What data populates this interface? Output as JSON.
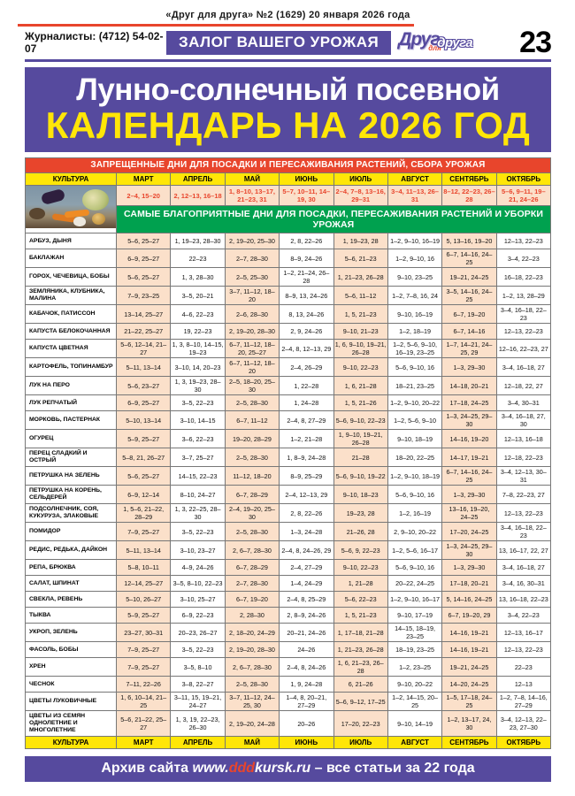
{
  "masthead": {
    "issue_line": "«Друг для друга» №2 (1629) 20 января 2026 года",
    "journalists": "Журналисты: (4712) 54-02-07",
    "slogan": "ЗАЛОГ ВАШЕГО УРОЖАЯ",
    "logo": {
      "word1": "Друг",
      "word2": "для",
      "word3": "друга"
    },
    "page_number": "23"
  },
  "title": {
    "line1": "Лунно-солнечный посевной",
    "line2": "КАЛЕНДАРЬ НА 2026 ГОД"
  },
  "table": {
    "forbidden_header": "ЗАПРЕЩЕННЫЕ ДНИ ДЛЯ ПОСАДКИ И ПЕРЕСАЖИВАНИЯ РАСТЕНИЙ, СБОРА УРОЖАЯ",
    "favorable_header": "САМЫЕ БЛАГОПРИЯТНЫЕ ДНИ ДЛЯ ПОСАДКИ, ПЕРЕСАЖИВАНИЯ РАСТЕНИЙ И УБОРКИ УРОЖАЯ",
    "culture_label": "КУЛЬТУРА",
    "months": [
      "МАРТ",
      "АПРЕЛЬ",
      "МАЙ",
      "ИЮНЬ",
      "ИЮЛЬ",
      "АВГУСТ",
      "СЕНТЯБРЬ",
      "ОКТЯБРЬ"
    ],
    "forbidden_days": [
      "2–4, 15–20",
      "2, 12–13, 16–18",
      "1, 8–10, 13–17, 21–23, 31",
      "5–7, 10–11, 14–19, 30",
      "2–4, 7–8, 13–16, 29–31",
      "3–4, 11–13, 26–31",
      "8–12, 22–23, 26–28",
      "5–6, 9–11, 19–21, 24–26"
    ],
    "rows": [
      {
        "name": "АРБУЗ, ДЫНЯ",
        "cells": [
          "5–6, 25–27",
          "1, 19–23, 28–30",
          "2, 19–20, 25–30",
          "2, 8, 22–26",
          "1, 19–23, 28",
          "1–2, 9–10, 16–19",
          "5, 13–16, 19–20",
          "12–13, 22–23"
        ]
      },
      {
        "name": "БАКЛАЖАН",
        "cells": [
          "6–9, 25–27",
          "22–23",
          "2–7, 28–30",
          "8–9, 24–26",
          "5–6, 21–23",
          "1–2, 9–10, 16",
          "6–7, 14–16, 24–25",
          "3–4, 22–23"
        ]
      },
      {
        "name": "ГОРОХ, ЧЕЧЕВИЦА, БОБЫ",
        "cells": [
          "5–6, 25–27",
          "1, 3, 28–30",
          "2–5, 25–30",
          "1–2, 21–24, 26–28",
          "1, 21–23, 26–28",
          "9–10, 23–25",
          "19–21, 24–25",
          "16–18, 22–23"
        ]
      },
      {
        "name": "ЗЕМЛЯНИКА, КЛУБНИКА, МАЛИНА",
        "cells": [
          "7–9, 23–25",
          "3–5, 20–21",
          "3–7, 11–12, 18–20",
          "8–9, 13, 24–26",
          "5–6, 11–12",
          "1–2, 7–8, 16, 24",
          "3–5, 14–16, 24–25",
          "1–2, 13, 28–29"
        ]
      },
      {
        "name": "КАБАЧОК, ПАТИССОН",
        "cells": [
          "13–14, 25–27",
          "4–6, 22–23",
          "2–6, 28–30",
          "8, 13, 24–26",
          "1, 5, 21–23",
          "9–10, 16–19",
          "6–7, 19–20",
          "3–4, 16–18, 22–23"
        ]
      },
      {
        "name": "КАПУСТА БЕЛОКОЧАННАЯ",
        "cells": [
          "21–22, 25–27",
          "19, 22–23",
          "2, 19–20, 28–30",
          "2, 9, 24–26",
          "9–10, 21–23",
          "1–2, 18–19",
          "6–7, 14–16",
          "12–13, 22–23"
        ]
      },
      {
        "name": "КАПУСТА ЦВЕТНАЯ",
        "cells": [
          "5–6, 12–14, 21–27",
          "1, 3, 8–10, 14–15, 19–23",
          "6–7, 11–12, 18–20, 25–27",
          "2–4, 8, 12–13, 29",
          "1, 6, 9–10, 19–21, 26–28",
          "1–2, 5–6, 9–10, 16–19, 23–25",
          "1–7, 14–21, 24–25, 29",
          "12–16, 22–23, 27"
        ]
      },
      {
        "name": "КАРТОФЕЛЬ, ТОПИНАМБУР",
        "cells": [
          "5–11, 13–14",
          "3–10, 14, 20–23",
          "6–7, 11–12, 18–20",
          "2–4, 26–29",
          "9–10, 22–23",
          "5–6, 9–10, 16",
          "1–3, 29–30",
          "3–4, 16–18, 27"
        ]
      },
      {
        "name": "ЛУК НА ПЕРО",
        "cells": [
          "5–6, 23–27",
          "1, 3, 19–23, 28–30",
          "2–5, 18–20, 25–30",
          "1, 22–28",
          "1, 6, 21–28",
          "18–21, 23–25",
          "14–18, 20–21",
          "12–18, 22, 27"
        ]
      },
      {
        "name": "ЛУК РЕПЧАТЫЙ",
        "cells": [
          "6–9, 25–27",
          "3–5, 22–23",
          "2–5, 28–30",
          "1, 24–28",
          "1, 5, 21–26",
          "1–2, 9–10, 20–22",
          "17–18, 24–25",
          "3–4, 30–31"
        ]
      },
      {
        "name": "МОРКОВЬ, ПАСТЕРНАК",
        "cells": [
          "5–10, 13–14",
          "3–10, 14–15",
          "6–7, 11–12",
          "2–4, 8, 27–29",
          "5–6, 9–10, 22–23",
          "1–2, 5–6, 9–10",
          "1–3, 24–25, 29–30",
          "3–4, 16–18, 27, 30"
        ]
      },
      {
        "name": "ОГУРЕЦ",
        "cells": [
          "5–9, 25–27",
          "3–6, 22–23",
          "19–20, 28–29",
          "1–2, 21–28",
          "1, 9–10, 19–21, 26–28",
          "9–10, 18–19",
          "14–16, 19–20",
          "12–13, 16–18"
        ]
      },
      {
        "name": "ПЕРЕЦ СЛАДКИЙ И ОСТРЫЙ",
        "cells": [
          "5–8, 21, 26–27",
          "3–7, 25–27",
          "2–5, 28–30",
          "1, 8–9, 24–28",
          "21–28",
          "18–20, 22–25",
          "14–17, 19–21",
          "12–18, 22–23"
        ]
      },
      {
        "name": "ПЕТРУШКА НА ЗЕЛЕНЬ",
        "cells": [
          "5–6, 25–27",
          "14–15, 22–23",
          "11–12, 18–20",
          "8–9, 25–29",
          "5–6, 9–10, 19–22",
          "1–2, 9–10, 18–19",
          "6–7, 14–16, 24–25",
          "3–4, 12–13, 30–31"
        ]
      },
      {
        "name": "ПЕТРУШКА НА КОРЕНЬ, СЕЛЬДЕРЕЙ",
        "cells": [
          "6–9, 12–14",
          "8–10, 24–27",
          "6–7, 28–29",
          "2–4, 12–13, 29",
          "9–10, 18–23",
          "5–6, 9–10, 16",
          "1–3, 29–30",
          "7–8, 22–23, 27"
        ]
      },
      {
        "name": "ПОДСОЛНЕЧНИК, СОЯ, КУКУРУЗА, ЗЛАКОВЫЕ",
        "cells": [
          "1, 5–6, 21–22, 28–29",
          "1, 3, 22–25, 28–30",
          "2–4, 19–20, 25–30",
          "2, 8, 22–26",
          "19–23, 28",
          "1–2, 16–19",
          "13–16, 19–20, 24–25",
          "12–13, 22–23"
        ]
      },
      {
        "name": "ПОМИДОР",
        "cells": [
          "7–9, 25–27",
          "3–5, 22–23",
          "2–5, 28–30",
          "1–3, 24–28",
          "21–26, 28",
          "2, 9–10, 20–22",
          "17–20, 24–25",
          "3–4, 16–18, 22–23"
        ]
      },
      {
        "name": "РЕДИС, РЕДЬКА, ДАЙКОН",
        "cells": [
          "5–11, 13–14",
          "3–10, 23–27",
          "2, 6–7, 28–30",
          "2–4, 8, 24–26, 29",
          "5–6, 9, 22–23",
          "1–2, 5–6, 16–17",
          "1–3, 24–25, 29–30",
          "13, 16–17, 22, 27"
        ]
      },
      {
        "name": "РЕПА, БРЮКВА",
        "cells": [
          "5–8, 10–11",
          "4–9, 24–26",
          "6–7, 28–29",
          "2–4, 27–29",
          "9–10, 22–23",
          "5–6, 9–10, 16",
          "1–3, 29–30",
          "3–4, 16–18, 27"
        ]
      },
      {
        "name": "САЛАТ, ШПИНАТ",
        "cells": [
          "12–14, 25–27",
          "3–5, 8–10, 22–23",
          "2–7, 28–30",
          "1–4, 24–29",
          "1, 21–28",
          "20–22, 24–25",
          "17–18, 20–21",
          "3–4, 16, 30–31"
        ]
      },
      {
        "name": "СВЕКЛА, РЕВЕНЬ",
        "cells": [
          "5–10, 26–27",
          "3–10, 25–27",
          "6–7, 19–20",
          "2–4, 8, 25–29",
          "5–6, 22–23",
          "1–2, 9–10, 16–17",
          "5, 14–16, 24–25",
          "13, 16–18, 22–23"
        ]
      },
      {
        "name": "ТЫКВА",
        "cells": [
          "5–9, 25–27",
          "6–9, 22–23",
          "2, 28–30",
          "2, 8–9, 24–26",
          "1, 5, 21–23",
          "9–10, 17–19",
          "6–7, 19–20, 29",
          "3–4, 22–23"
        ]
      },
      {
        "name": "УКРОП, ЗЕЛЕНЬ",
        "cells": [
          "23–27, 30–31",
          "20–23, 26–27",
          "2, 18–20, 24–29",
          "20–21, 24–26",
          "1, 17–18, 21–28",
          "14–15, 18–19, 23–25",
          "14–16, 19–21",
          "12–13, 16–17"
        ]
      },
      {
        "name": "ФАСОЛЬ, БОБЫ",
        "cells": [
          "7–9, 25–27",
          "3–5, 22–23",
          "2, 19–20, 28–30",
          "24–26",
          "1, 21–23, 26–28",
          "18–19, 23–25",
          "14–16, 19–21",
          "12–13, 22–23"
        ]
      },
      {
        "name": "ХРЕН",
        "cells": [
          "7–9, 25–27",
          "3–5, 8–10",
          "2, 6–7, 28–30",
          "2–4, 8, 24–26",
          "1, 6, 21–23, 26–28",
          "1–2, 23–25",
          "19–21, 24–25",
          "22–23"
        ]
      },
      {
        "name": "ЧЕСНОК",
        "cells": [
          "7–11, 22–26",
          "3–8, 22–27",
          "2–5, 28–30",
          "1, 9, 24–28",
          "6, 21–26",
          "9–10, 20–22",
          "14–20, 24–25",
          "12–13"
        ]
      },
      {
        "name": "ЦВЕТЫ ЛУКОВИЧНЫЕ",
        "cells": [
          "1, 6, 10–14, 21–25",
          "3–11, 15, 19–21, 24–27",
          "3–7, 11–12, 24–25, 30",
          "1–4, 8, 20–21, 27–29",
          "5–6, 9–12, 17–25",
          "1–2, 14–15, 20–25",
          "1–5, 17–18, 24–25",
          "1–2, 7–8, 14–16, 27–29"
        ]
      },
      {
        "name": "ЦВЕТЫ ИЗ СЕМЯН ОДНОЛЕТНИЕ И МНОГОЛЕТНИЕ",
        "cells": [
          "5–6, 21–22, 25–27",
          "1, 3, 19, 22–23, 26–30",
          "2, 19–20, 24–28",
          "20–26",
          "17–20, 22–23",
          "9–10, 14–19",
          "1–2, 13–17, 24, 30",
          "3–4, 12–13, 22–23, 27–30"
        ]
      }
    ]
  },
  "footer": {
    "prefix": "Архив сайта",
    "url_www": "www.",
    "url_ddd": "ddd",
    "url_rest": "kursk.ru",
    "suffix": "– все статьи за 22 года"
  },
  "colors": {
    "purple": "#564a9e",
    "red": "#e8452c",
    "yellow": "#ffe607",
    "green": "#00a14f",
    "shade_pink": "#fbe0ca"
  }
}
